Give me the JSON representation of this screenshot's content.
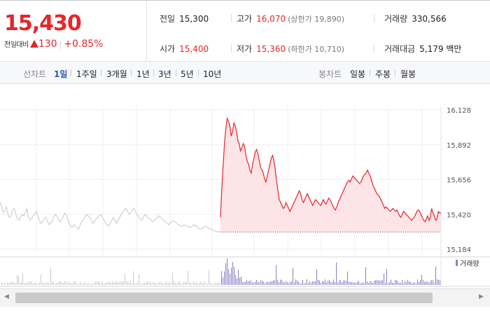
{
  "quote": {
    "price": "15,430",
    "change_label": "전일대비",
    "change_amount": "130",
    "change_percent": "+0.85%",
    "prev_close_label": "전일",
    "prev_close": "15,300",
    "open_label": "시가",
    "open": "15,400",
    "high_label": "고가",
    "high": "16,070",
    "upper_limit": "(상한가 19,890)",
    "low_label": "저가",
    "low": "15,360",
    "lower_limit": "(하한가 10,710)",
    "volume_label": "거래량",
    "volume": "330,566",
    "turnover_label": "거래대금",
    "turnover": "5,179 백만"
  },
  "tabs": {
    "line_label": "선차트",
    "line_items": [
      "1일",
      "1주일",
      "3개월",
      "1년",
      "3년",
      "5년",
      "10년"
    ],
    "selected": "1일",
    "candle_label": "봉차트",
    "candle_items": [
      "일봉",
      "주봉",
      "월봉"
    ]
  },
  "chart_data": {
    "type": "line",
    "y_ticks": [
      "16,128",
      "15,892",
      "15,656",
      "15,420",
      "15,184"
    ],
    "ylim": [
      15184,
      16128
    ],
    "reference_price": 15300,
    "prev_series": [
      15500,
      15480,
      15430,
      15440,
      15470,
      15420,
      15400,
      15410,
      15450,
      15460,
      15420,
      15390,
      15380,
      15400,
      15420,
      15410,
      15430,
      15460,
      15400,
      15380,
      15390,
      15410,
      15420,
      15440,
      15410,
      15380,
      15360,
      15370,
      15390,
      15400,
      15380,
      15350,
      15360,
      15370,
      15400,
      15420,
      15410,
      15390,
      15370,
      15380,
      15400,
      15430,
      15420,
      15390,
      15360,
      15340,
      15330,
      15350,
      15340,
      15330,
      15320,
      15350,
      15370,
      15390,
      15400,
      15420,
      15410,
      15400,
      15380,
      15360,
      15370,
      15390,
      15400,
      15410,
      15420,
      15400,
      15380,
      15360,
      15350,
      15340,
      15360,
      15380,
      15400,
      15380,
      15360,
      15380,
      15400,
      15420,
      15440,
      15450,
      15460,
      15440,
      15420,
      15430,
      15450,
      15460,
      15440,
      15420,
      15400,
      15390,
      15380,
      15400,
      15420,
      15410,
      15400,
      15390,
      15380,
      15370,
      15380,
      15390,
      15400,
      15410,
      15400,
      15390,
      15380,
      15370,
      15360,
      15350,
      15360,
      15370,
      15380,
      15370,
      15360,
      15350,
      15345,
      15340,
      15345,
      15350,
      15345,
      15340,
      15335,
      15330,
      15340,
      15350,
      15345,
      15340,
      15330,
      15320,
      15325,
      15330,
      15340,
      15335,
      15330,
      15325,
      15320,
      15315,
      15310,
      15305,
      15300,
      15305,
      15300
    ],
    "today_series": [
      15400,
      15600,
      15750,
      15900,
      16000,
      16070,
      16050,
      16020,
      15950,
      15980,
      16040,
      16020,
      15980,
      15920,
      15900,
      15850,
      15870,
      15900,
      15880,
      15820,
      15780,
      15760,
      15720,
      15700,
      15760,
      15800,
      15840,
      15860,
      15830,
      15780,
      15740,
      15720,
      15700,
      15660,
      15640,
      15680,
      15720,
      15760,
      15800,
      15820,
      15780,
      15720,
      15640,
      15580,
      15520,
      15500,
      15480,
      15460,
      15470,
      15500,
      15480,
      15460,
      15440,
      15460,
      15480,
      15500,
      15520,
      15540,
      15560,
      15580,
      15560,
      15520,
      15500,
      15520,
      15540,
      15560,
      15540,
      15520,
      15500,
      15480,
      15500,
      15520,
      15510,
      15500,
      15490,
      15480,
      15500,
      15520,
      15500,
      15490,
      15510,
      15530,
      15520,
      15500,
      15480,
      15460,
      15450,
      15470,
      15500,
      15520,
      15540,
      15560,
      15580,
      15600,
      15620,
      15640,
      15650,
      15640,
      15660,
      15680,
      15670,
      15660,
      15650,
      15640,
      15630,
      15640,
      15660,
      15680,
      15690,
      15700,
      15720,
      15700,
      15680,
      15650,
      15620,
      15600,
      15580,
      15560,
      15550,
      15540,
      15520,
      15500,
      15480,
      15460,
      15470,
      15460,
      15450,
      15440,
      15450,
      15460,
      15450,
      15440,
      15450,
      15430,
      15410,
      15400,
      15420,
      15440,
      15430,
      15420,
      15410,
      15400,
      15390,
      15380,
      15390,
      15400,
      15420,
      15440,
      15450,
      15440,
      15420,
      15400,
      15380,
      15370,
      15390,
      15410,
      15380,
      15400,
      15460,
      15430,
      15410,
      15380,
      15390,
      15440,
      15430,
      15430
    ],
    "volume_label": "거래량"
  },
  "scrollbar": {
    "left_arrow": "◀",
    "right_arrow": "▶"
  },
  "colors": {
    "up": "#e5262a",
    "accent": "#2a53c8",
    "volume_today": "#8b7fc7",
    "prev_line": "#c8c8c8",
    "area_fill": "#fde4e6"
  }
}
